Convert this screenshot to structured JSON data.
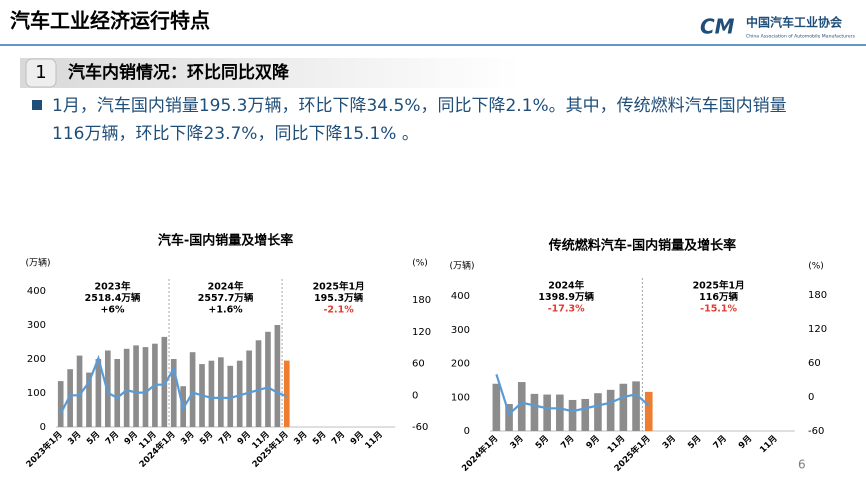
{
  "header": {
    "title": "汽车工业经济运行特点",
    "logo_mark": "CM",
    "logo_cn": "中国汽车工业协会",
    "logo_en": "China Association of Automobile Manufacturers"
  },
  "section": {
    "number": "1",
    "heading": "汽车内销情况：环比同比双降"
  },
  "bullet": [
    "1月，汽车国内销量195.3万辆，环比下降34.5%，同比下降2.1%。其中，传统燃料汽车国内销量",
    "116万辆，环比下降23.7%，同比下降15.1% 。"
  ],
  "page_number": "6",
  "chart_data": [
    {
      "type": "bar",
      "title": "汽车-国内销量及增长率",
      "y_unit": "(万辆)",
      "y2_unit": "(%)",
      "categories": [
        "2023年1月",
        null,
        "3月",
        null,
        "5月",
        null,
        "7月",
        null,
        "9月",
        null,
        "11月",
        null,
        "2024年1月",
        null,
        "3月",
        null,
        "5月",
        null,
        "7月",
        null,
        "9月",
        null,
        "11月",
        null,
        "2025年1月",
        null,
        "3月",
        null,
        "5月",
        null,
        "7月",
        null,
        "9月",
        null,
        "11月",
        null
      ],
      "series": [
        {
          "type": "bar",
          "color": "#8c8c8c",
          "highlight_color": "#ed7d31",
          "values": [
            135,
            170,
            210,
            160,
            200,
            225,
            200,
            230,
            240,
            235,
            245,
            265,
            200,
            120,
            220,
            185,
            195,
            205,
            180,
            195,
            225,
            255,
            280,
            300,
            195.3,
            null,
            null,
            null,
            null,
            null,
            null,
            null,
            null,
            null,
            null,
            null
          ]
        },
        {
          "type": "line",
          "axis": "y2",
          "color": "#5b9bd5",
          "values": [
            -35,
            0,
            0,
            25,
            70,
            5,
            -5,
            10,
            5,
            5,
            20,
            20,
            50,
            -25,
            5,
            0,
            -5,
            -5,
            -5,
            0,
            5,
            10,
            15,
            5,
            -2.1,
            null,
            null,
            null,
            null,
            null,
            null,
            null,
            null,
            null,
            null,
            null
          ]
        }
      ],
      "ylim": [
        0,
        400
      ],
      "yticks": [
        0,
        100,
        200,
        300,
        400
      ],
      "y2lim": [
        -60,
        180
      ],
      "y2ticks": [
        -60,
        0,
        60,
        120,
        180
      ],
      "annotations": [
        {
          "lines": [
            "2023年",
            "2518.4万辆",
            "+6%"
          ]
        },
        {
          "lines": [
            "2024年",
            "2557.7万辆",
            "+1.6%"
          ]
        },
        {
          "lines": [
            "2025年1月",
            "195.3万辆",
            "-2.1%"
          ],
          "last_line_color": "#e03c31"
        }
      ]
    },
    {
      "type": "bar",
      "title": "传统燃料汽车-国内销量及增长率",
      "y_unit": "(万辆)",
      "y2_unit": "(%)",
      "categories": [
        "2024年1月",
        null,
        "3月",
        null,
        "5月",
        null,
        "7月",
        null,
        "9月",
        null,
        "11月",
        null,
        "2025年1月",
        null,
        "3月",
        null,
        "5月",
        null,
        "7月",
        null,
        "9月",
        null,
        "11月",
        null
      ],
      "series": [
        {
          "type": "bar",
          "color": "#8c8c8c",
          "highlight_color": "#ed7d31",
          "values": [
            140,
            80,
            145,
            110,
            108,
            108,
            92,
            95,
            112,
            122,
            140,
            147,
            116,
            null,
            null,
            null,
            null,
            null,
            null,
            null,
            null,
            null,
            null,
            null
          ]
        },
        {
          "type": "line",
          "axis": "y2",
          "color": "#5b9bd5",
          "values": [
            40,
            -30,
            -10,
            -15,
            -20,
            -20,
            -25,
            -20,
            -15,
            -10,
            0,
            5,
            -15.1,
            null,
            null,
            null,
            null,
            null,
            null,
            null,
            null,
            null,
            null,
            null
          ]
        }
      ],
      "ylim": [
        0,
        400
      ],
      "yticks": [
        0,
        100,
        200,
        300,
        400
      ],
      "y2lim": [
        -60,
        180
      ],
      "y2ticks": [
        -60,
        0,
        60,
        120,
        180
      ],
      "annotations": [
        {
          "lines": [
            "2024年",
            "1398.9万辆",
            "-17.3%"
          ],
          "last_line_color": "#e03c31"
        },
        {
          "lines": [
            "2025年1月",
            "116万辆",
            "-15.1%"
          ],
          "last_line_color": "#e03c31"
        }
      ]
    }
  ]
}
